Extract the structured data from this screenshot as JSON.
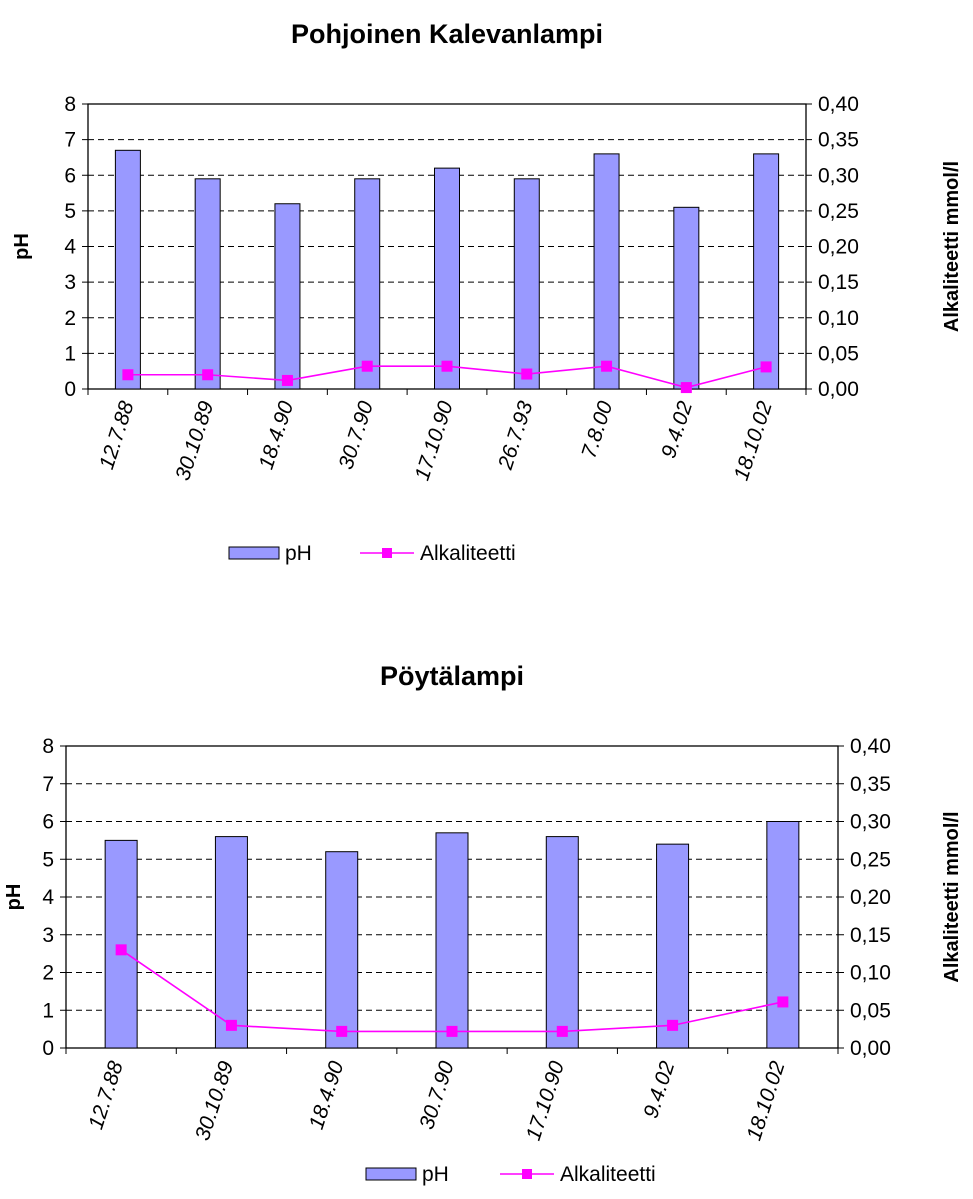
{
  "chart_data": [
    {
      "type": "bar",
      "title": "Pohjoinen Kalevanlampi",
      "categories": [
        "12.7.88",
        "30.10.89",
        "18.4.90",
        "30.7.90",
        "17.10.90",
        "26.7.93",
        "7.8.00",
        "9.4.02",
        "18.10.02"
      ],
      "series": [
        {
          "name": "pH",
          "type": "bar",
          "axis": "left",
          "color": "#9999ff",
          "values": [
            6.7,
            5.9,
            5.2,
            5.9,
            6.2,
            5.9,
            6.6,
            5.1,
            6.6
          ]
        },
        {
          "name": "Alkaliteetti",
          "type": "line",
          "axis": "right",
          "color": "#ff00ff",
          "values": [
            0.02,
            0.02,
            0.012,
            0.032,
            0.032,
            0.021,
            0.032,
            0.002,
            0.031
          ]
        }
      ],
      "ylabel": "pH",
      "y2label": "Alkaliteetti mmol/l",
      "ylim": [
        0,
        8
      ],
      "y2lim": [
        0,
        0.4
      ],
      "yticks": [
        "0",
        "1",
        "2",
        "3",
        "4",
        "5",
        "6",
        "7",
        "8"
      ],
      "y2ticks": [
        "0,00",
        "0,05",
        "0,10",
        "0,15",
        "0,20",
        "0,25",
        "0,30",
        "0,35",
        "0,40"
      ],
      "grid": true,
      "legend_position": "bottom"
    },
    {
      "type": "bar",
      "title": "Pöytälampi",
      "categories": [
        "12.7.88",
        "30.10.89",
        "18.4.90",
        "30.7.90",
        "17.10.90",
        "9.4.02",
        "18.10.02"
      ],
      "series": [
        {
          "name": "pH",
          "type": "bar",
          "axis": "left",
          "color": "#9999ff",
          "values": [
            5.5,
            5.6,
            5.2,
            5.7,
            5.6,
            5.4,
            6.0
          ]
        },
        {
          "name": "Alkaliteetti",
          "type": "line",
          "axis": "right",
          "color": "#ff00ff",
          "values": [
            0.13,
            0.03,
            0.022,
            0.022,
            0.022,
            0.03,
            0.061
          ]
        }
      ],
      "ylabel": "pH",
      "y2label": "Alkaliteetti mmol/l",
      "ylim": [
        0,
        8
      ],
      "y2lim": [
        0,
        0.4
      ],
      "yticks": [
        "0",
        "1",
        "2",
        "3",
        "4",
        "5",
        "6",
        "7",
        "8"
      ],
      "y2ticks": [
        "0,00",
        "0,05",
        "0,10",
        "0,15",
        "0,20",
        "0,25",
        "0,30",
        "0,35",
        "0,40"
      ],
      "grid": true,
      "legend_position": "bottom"
    }
  ]
}
